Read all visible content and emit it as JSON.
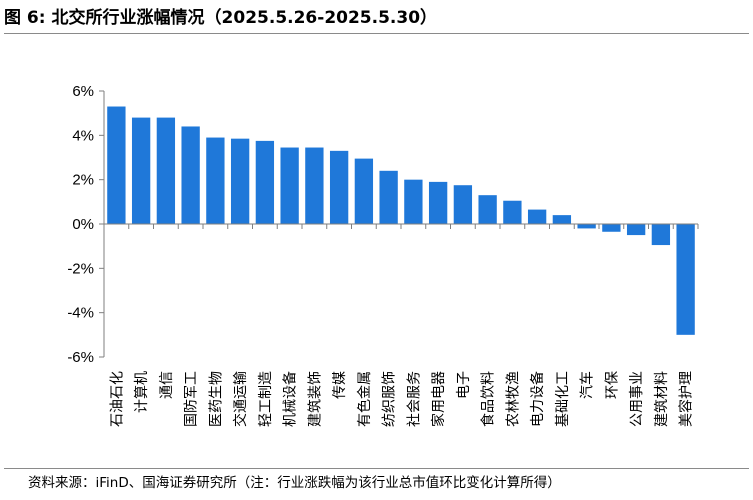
{
  "figure": {
    "caption_label": "图 6:",
    "title": "北交所行业涨幅情况（2025.5.26-2025.5.30）",
    "source": "资料来源：iFinD、国海证券研究所（注：行业涨跌幅为该行业总市值环比变化计算所得）"
  },
  "colors": {
    "bar": "#1f78d9",
    "axis": "#7f7f7f",
    "text": "#000000"
  },
  "chart_data": {
    "type": "bar",
    "title": "",
    "xlabel": "",
    "ylabel": "",
    "ylim": [
      -6,
      6
    ],
    "yticks": [
      -6,
      -4,
      -2,
      0,
      2,
      4,
      6
    ],
    "ytick_labels": [
      "-6%",
      "-4%",
      "-2%",
      "0%",
      "2%",
      "4%",
      "6%"
    ],
    "grid": false,
    "legend": "none",
    "categories": [
      "石油石化",
      "计算机",
      "通信",
      "国防军工",
      "医药生物",
      "交通运输",
      "轻工制造",
      "机械设备",
      "建筑装饰",
      "传媒",
      "有色金属",
      "纺织服饰",
      "社会服务",
      "家用电器",
      "电子",
      "食品饮料",
      "农林牧渔",
      "电力设备",
      "基础化工",
      "汽车",
      "环保",
      "公用事业",
      "建筑材料",
      "美容护理"
    ],
    "values": [
      5.3,
      4.8,
      4.8,
      4.4,
      3.9,
      3.85,
      3.75,
      3.45,
      3.45,
      3.3,
      2.95,
      2.4,
      2.0,
      1.9,
      1.75,
      1.3,
      1.05,
      0.65,
      0.4,
      -0.2,
      -0.35,
      -0.5,
      -0.95,
      -5.0
    ]
  }
}
